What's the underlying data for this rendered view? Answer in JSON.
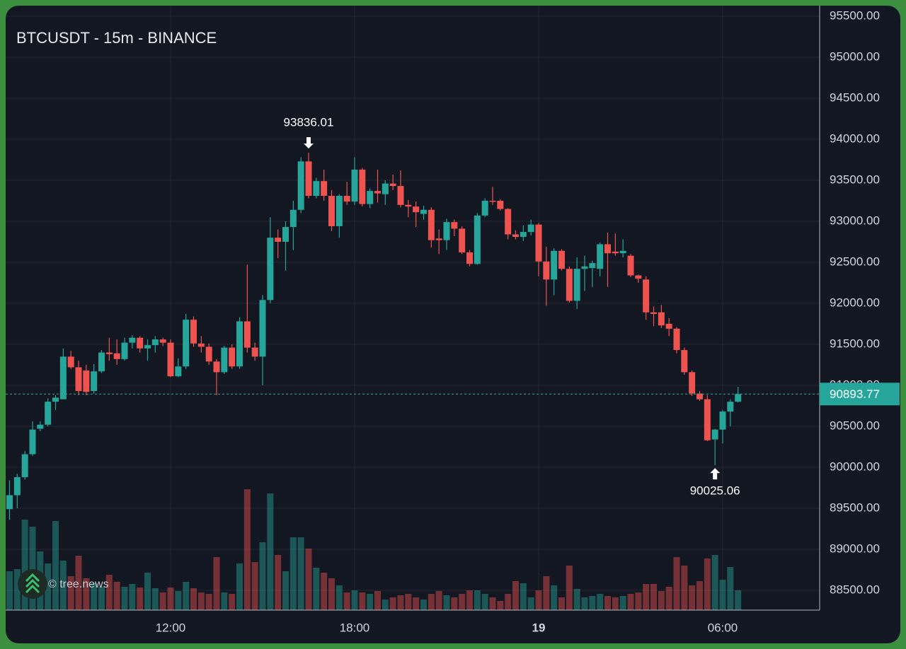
{
  "chart_data": {
    "type": "candlestick",
    "title": "BTCUSDT - 15m - BINANCE",
    "watermark": "© tree.news",
    "x": [
      "06:45",
      "07:00",
      "07:15",
      "07:30",
      "07:45",
      "08:00",
      "08:15",
      "08:30",
      "08:45",
      "09:00",
      "09:15",
      "09:30",
      "09:45",
      "10:00",
      "10:15",
      "10:30",
      "10:45",
      "11:00",
      "11:15",
      "11:30",
      "11:45",
      "12:00",
      "12:15",
      "12:30",
      "12:45",
      "13:00",
      "13:15",
      "13:30",
      "13:45",
      "14:00",
      "14:15",
      "14:30",
      "14:45",
      "15:00",
      "15:15",
      "15:30",
      "15:45",
      "16:00",
      "16:15",
      "16:30",
      "16:45",
      "17:00",
      "17:15",
      "17:30",
      "17:45",
      "18:00",
      "18:15",
      "18:30",
      "18:45",
      "19:00",
      "19:15",
      "19:30",
      "19:45",
      "20:00",
      "20:15",
      "20:30",
      "20:45",
      "21:00",
      "21:15",
      "21:30",
      "21:45",
      "22:00",
      "22:15",
      "22:30",
      "22:45",
      "23:00",
      "23:15",
      "23:30",
      "23:45",
      "00:00",
      "00:15",
      "00:30",
      "00:45",
      "01:00",
      "01:15",
      "01:30",
      "01:45",
      "02:00",
      "02:15",
      "02:30",
      "02:45",
      "03:00",
      "03:15",
      "03:30",
      "03:45",
      "04:00",
      "04:15",
      "04:30",
      "04:45",
      "05:00",
      "05:15",
      "05:30",
      "05:45",
      "06:00",
      "06:15",
      "06:30"
    ],
    "open": [
      89490,
      89660,
      89880,
      90160,
      90470,
      90520,
      90800,
      90830,
      91350,
      91220,
      91180,
      90930,
      91170,
      91400,
      91390,
      91320,
      91520,
      91580,
      91450,
      91490,
      91560,
      91520,
      91110,
      91230,
      91800,
      91510,
      91470,
      91290,
      91160,
      91460,
      91230,
      91780,
      91460,
      91350,
      92040,
      92800,
      92750,
      92930,
      93140,
      93730,
      93310,
      93490,
      93310,
      92940,
      93310,
      93240,
      93630,
      93210,
      93370,
      93330,
      93460,
      93430,
      93200,
      93180,
      93090,
      93140,
      92790,
      92770,
      92990,
      92910,
      92620,
      92480,
      93070,
      93250,
      93250,
      93150,
      92840,
      92810,
      92870,
      92960,
      92510,
      92290,
      92640,
      92420,
      92030,
      92420,
      92430,
      92420,
      92720,
      92630,
      92610,
      92580,
      92340,
      92290,
      91890,
      91890,
      91750,
      91690,
      91430,
      91160,
      90900,
      90830,
      90340,
      90460,
      90680,
      90800
    ],
    "high": [
      89840,
      89920,
      90200,
      90560,
      90560,
      90840,
      90880,
      91450,
      91420,
      91300,
      91250,
      91260,
      91430,
      91580,
      91560,
      91580,
      91610,
      91600,
      91560,
      91600,
      91580,
      91560,
      91330,
      91870,
      91840,
      91600,
      91510,
      91320,
      91480,
      91500,
      91830,
      92470,
      91520,
      92100,
      93050,
      92900,
      93000,
      93250,
      93780,
      93836.01,
      93530,
      93630,
      93380,
      93330,
      93480,
      93780,
      93650,
      93400,
      93630,
      93500,
      93570,
      93620,
      93260,
      93240,
      93190,
      93170,
      92900,
      93030,
      93020,
      92940,
      92650,
      93100,
      93280,
      93420,
      93270,
      93160,
      92890,
      92950,
      93020,
      92980,
      92690,
      92670,
      92660,
      92450,
      92560,
      92580,
      92520,
      92740,
      92860,
      92850,
      92780,
      92600,
      92350,
      92330,
      91960,
      91980,
      91820,
      91710,
      91460,
      91180,
      90930,
      90880,
      90470,
      90700,
      90830,
      90980
    ],
    "low": [
      89360,
      89500,
      89850,
      90140,
      90440,
      90500,
      90700,
      90830,
      91200,
      90880,
      90880,
      90900,
      91150,
      91300,
      91250,
      91300,
      91450,
      91400,
      91300,
      91400,
      91480,
      91100,
      91100,
      91200,
      91470,
      91400,
      91250,
      90880,
      91140,
      91200,
      91200,
      91400,
      91300,
      91000,
      92000,
      92550,
      92400,
      92650,
      93100,
      93280,
      93280,
      93250,
      92880,
      92800,
      93200,
      93200,
      93180,
      93160,
      93230,
      93200,
      93380,
      93170,
      93050,
      92930,
      93020,
      92680,
      92600,
      92650,
      92820,
      92600,
      92450,
      92470,
      93050,
      93200,
      93130,
      92780,
      92780,
      92760,
      92830,
      92330,
      91970,
      92100,
      92400,
      92010,
      91930,
      92150,
      92200,
      92330,
      92200,
      92580,
      92560,
      92320,
      92250,
      91800,
      91720,
      91700,
      91600,
      91390,
      91130,
      90870,
      90810,
      90320,
      90025.06,
      90290,
      90500,
      90790
    ],
    "close": [
      89660,
      89880,
      90160,
      90460,
      90520,
      90800,
      90850,
      91350,
      91220,
      90930,
      90920,
      91170,
      91400,
      91380,
      91320,
      91520,
      91580,
      91450,
      91490,
      91560,
      91520,
      91110,
      91230,
      91800,
      91510,
      91470,
      91290,
      91160,
      91460,
      91230,
      91780,
      91460,
      91350,
      92040,
      92800,
      92750,
      92930,
      93140,
      93730,
      93310,
      93490,
      93310,
      92940,
      93310,
      93240,
      93630,
      93210,
      93370,
      93340,
      93460,
      93430,
      93200,
      93180,
      93110,
      93140,
      92770,
      92770,
      92990,
      92910,
      92620,
      92480,
      93070,
      93250,
      93240,
      93150,
      92840,
      92810,
      92870,
      92960,
      92510,
      92290,
      92640,
      92420,
      92030,
      92420,
      92450,
      92490,
      92720,
      92610,
      92610,
      92640,
      92340,
      92300,
      91890,
      91870,
      91730,
      91690,
      91430,
      91160,
      90900,
      90830,
      90330,
      90460,
      90680,
      90800,
      90893.77
    ],
    "volume": [
      55,
      58,
      128,
      118,
      83,
      66,
      126,
      70,
      48,
      77,
      45,
      38,
      33,
      50,
      40,
      33,
      37,
      32,
      53,
      31,
      25,
      32,
      27,
      40,
      31,
      25,
      23,
      75,
      25,
      23,
      66,
      171,
      68,
      96,
      165,
      78,
      55,
      103,
      103,
      87,
      60,
      53,
      45,
      35,
      25,
      28,
      25,
      23,
      27,
      15,
      18,
      21,
      23,
      18,
      15,
      23,
      27,
      21,
      18,
      23,
      28,
      28,
      23,
      18,
      13,
      23,
      41,
      38,
      18,
      28,
      48,
      35,
      18,
      63,
      30,
      18,
      20,
      23,
      20,
      18,
      20,
      23,
      25,
      37,
      37,
      27,
      33,
      75,
      63,
      35,
      41,
      73,
      78,
      43,
      61,
      28
    ],
    "vlim": [
      0,
      200
    ],
    "up_color": "#26a69a",
    "down_color": "#ef5350",
    "ylim": [
      88259,
      95629
    ],
    "yticks": [
      {
        "value": 88500,
        "label": "88500.00"
      },
      {
        "value": 89000,
        "label": "89000.00"
      },
      {
        "value": 89500,
        "label": "89500.00"
      },
      {
        "value": 90000,
        "label": "90000.00"
      },
      {
        "value": 90500,
        "label": "90500.00"
      },
      {
        "value": 91000,
        "label": "91000.00"
      },
      {
        "value": 91500,
        "label": "91500.00"
      },
      {
        "value": 92000,
        "label": "92000.00"
      },
      {
        "value": 92500,
        "label": "92500.00"
      },
      {
        "value": 93000,
        "label": "93000.00"
      },
      {
        "value": 93500,
        "label": "93500.00"
      },
      {
        "value": 94000,
        "label": "94000.00"
      },
      {
        "value": 94500,
        "label": "94500.00"
      },
      {
        "value": 95000,
        "label": "95000.00"
      },
      {
        "value": 95500,
        "label": "95500.00"
      }
    ],
    "xticks": [
      "12:00",
      "18:00",
      {
        "value": "00:00",
        "label": "19"
      },
      "06:00"
    ],
    "grid": true,
    "annotations": [
      {
        "x": "16:30",
        "value": 93836.01,
        "label": "93836.01",
        "side": "above"
      },
      {
        "x": "05:45",
        "value": 90025.06,
        "label": "90025.06",
        "side": "below"
      }
    ],
    "last_price": {
      "value": 90893.77,
      "label": "90893.77"
    }
  }
}
